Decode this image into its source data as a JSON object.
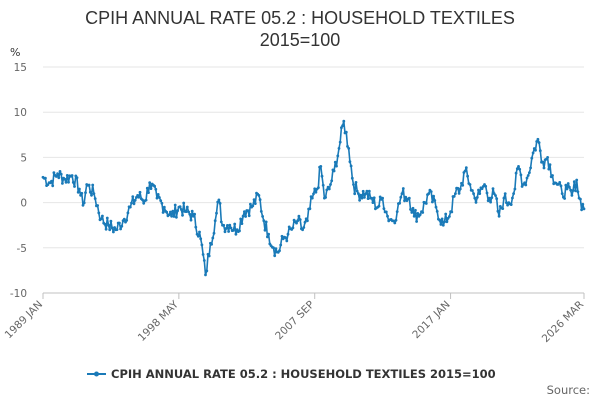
{
  "colors": {
    "series": "#1a7ab8",
    "grid": "#e6e6e6",
    "axis": "#c0c0c0"
  },
  "chart_data": {
    "type": "line",
    "title": "CPIH ANNUAL RATE 05.2 : HOUSEHOLD TEXTILES",
    "subtitle": "2015=100",
    "ylabel": "%",
    "xlabel": "",
    "ylim": [
      -10,
      15
    ],
    "yticks": [
      15,
      10,
      5,
      0,
      -5,
      -10
    ],
    "x_start": "1989 JAN",
    "x_end": "2026 MAR",
    "xticks": [
      {
        "label": "1989 JAN",
        "month": 0
      },
      {
        "label": "1998 MAY",
        "month": 112
      },
      {
        "label": "2007 SEP",
        "month": 224
      },
      {
        "label": "2017 JAN",
        "month": 336
      },
      {
        "label": "2026 MAR",
        "month": 446
      }
    ],
    "grid": true,
    "legend_position": "bottom",
    "source_label": "Source:",
    "series": [
      {
        "name": "CPIH ANNUAL RATE 05.2 : HOUSEHOLD TEXTILES 2015=100",
        "keypoints": [
          [
            0,
            2.8
          ],
          [
            6,
            2.2
          ],
          [
            12,
            3.2
          ],
          [
            18,
            2.6
          ],
          [
            24,
            3.0
          ],
          [
            30,
            1.5
          ],
          [
            33,
            -0.3
          ],
          [
            36,
            2.0
          ],
          [
            42,
            1.0
          ],
          [
            48,
            -1.8
          ],
          [
            54,
            -2.5
          ],
          [
            60,
            -3.0
          ],
          [
            66,
            -2.0
          ],
          [
            72,
            -0.5
          ],
          [
            78,
            0.8
          ],
          [
            84,
            0.2
          ],
          [
            88,
            2.2
          ],
          [
            94,
            0.5
          ],
          [
            100,
            -0.5
          ],
          [
            106,
            -1.5
          ],
          [
            112,
            -0.5
          ],
          [
            118,
            -1.0
          ],
          [
            124,
            -1.5
          ],
          [
            130,
            -4.0
          ],
          [
            134,
            -8.0
          ],
          [
            138,
            -4.5
          ],
          [
            142,
            -2.0
          ],
          [
            145,
            0.3
          ],
          [
            148,
            -2.5
          ],
          [
            154,
            -2.5
          ],
          [
            160,
            -3.0
          ],
          [
            166,
            -1.0
          ],
          [
            172,
            -0.5
          ],
          [
            178,
            0.8
          ],
          [
            182,
            -2.0
          ],
          [
            186,
            -3.5
          ],
          [
            190,
            -5.0
          ],
          [
            194,
            -5.5
          ],
          [
            198,
            -4.0
          ],
          [
            202,
            -3.5
          ],
          [
            206,
            -2.8
          ],
          [
            210,
            -2.0
          ],
          [
            214,
            -3.0
          ],
          [
            218,
            -2.0
          ],
          [
            222,
            0.5
          ],
          [
            226,
            1.5
          ],
          [
            229,
            4.0
          ],
          [
            232,
            0.5
          ],
          [
            236,
            1.5
          ],
          [
            240,
            3.5
          ],
          [
            244,
            6.0
          ],
          [
            248,
            9.0
          ],
          [
            252,
            6.0
          ],
          [
            256,
            2.0
          ],
          [
            260,
            1.0
          ],
          [
            266,
            1.0
          ],
          [
            270,
            0.5
          ],
          [
            276,
            -0.5
          ],
          [
            280,
            0.5
          ],
          [
            284,
            -1.5
          ],
          [
            288,
            -2.0
          ],
          [
            292,
            -1.0
          ],
          [
            296,
            1.0
          ],
          [
            302,
            0.5
          ],
          [
            306,
            -1.5
          ],
          [
            312,
            -1.0
          ],
          [
            318,
            1.0
          ],
          [
            324,
            -0.5
          ],
          [
            330,
            -2.5
          ],
          [
            336,
            -1.0
          ],
          [
            340,
            1.0
          ],
          [
            344,
            1.5
          ],
          [
            348,
            3.5
          ],
          [
            352,
            2.0
          ],
          [
            356,
            0.5
          ],
          [
            360,
            1.0
          ],
          [
            364,
            2.0
          ],
          [
            368,
            0.5
          ],
          [
            372,
            1.0
          ],
          [
            376,
            -1.5
          ],
          [
            380,
            0.5
          ],
          [
            384,
            0.0
          ],
          [
            388,
            1.0
          ],
          [
            392,
            4.0
          ],
          [
            396,
            2.0
          ],
          [
            400,
            3.0
          ],
          [
            404,
            5.5
          ],
          [
            408,
            7.0
          ],
          [
            412,
            4.5
          ],
          [
            416,
            5.0
          ],
          [
            420,
            3.0
          ],
          [
            424,
            2.0
          ],
          [
            428,
            1.0
          ],
          [
            432,
            1.5
          ],
          [
            436,
            0.8
          ],
          [
            440,
            2.5
          ],
          [
            442,
            0.5
          ],
          [
            446,
            -0.7
          ]
        ]
      }
    ]
  }
}
